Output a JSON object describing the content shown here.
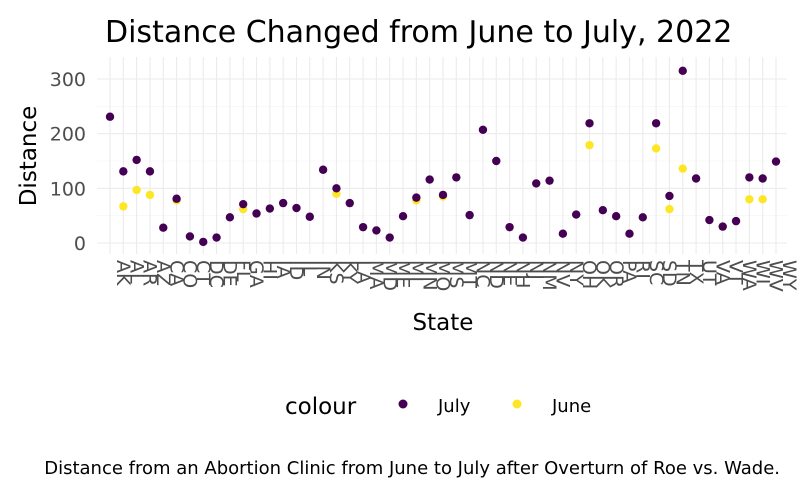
{
  "chart_data": {
    "type": "scatter",
    "title": "Distance Changed from June to July, 2022",
    "xlabel": "State",
    "ylabel": "Distance",
    "caption": "Distance from an Abortion Clinic from June to July after Overturn of Roe vs. Wade.",
    "ylim": [
      -10,
      330
    ],
    "yticks": [
      0,
      100,
      200,
      300
    ],
    "grid": true,
    "legend": {
      "title": "colour",
      "position": "bottom"
    },
    "categories": [
      "AK",
      "AL",
      "AR",
      "AZ",
      "CA",
      "CO",
      "CT",
      "DC",
      "DE",
      "FL",
      "GA",
      "HI",
      "IA",
      "ID",
      "IL",
      "IN",
      "KS",
      "KY",
      "LA",
      "MA",
      "MD",
      "ME",
      "MI",
      "MN",
      "MO",
      "MS",
      "MT",
      "NC",
      "ND",
      "NE",
      "NH",
      "NJ",
      "NM",
      "NV",
      "NY",
      "OH",
      "OK",
      "OR",
      "PA",
      "RI",
      "SC",
      "SD",
      "TN",
      "TX",
      "UT",
      "VA",
      "VT",
      "WA",
      "WI",
      "WV",
      "WY"
    ],
    "series": [
      {
        "name": "July",
        "color": "#440154",
        "values": [
          231,
          131,
          152,
          131,
          28,
          81,
          12,
          2,
          10,
          47,
          71,
          54,
          63,
          73,
          64,
          48,
          134,
          100,
          73,
          29,
          23,
          10,
          49,
          83,
          116,
          88,
          120,
          51,
          207,
          150,
          29,
          10,
          109,
          114,
          17,
          52,
          219,
          60,
          49,
          17,
          47,
          219,
          86,
          315,
          118,
          42,
          30,
          40,
          120,
          118,
          149
        ]
      },
      {
        "name": "June",
        "color": "#fde725",
        "values": [
          null,
          67,
          97,
          88,
          null,
          78,
          null,
          null,
          null,
          null,
          62,
          null,
          null,
          null,
          null,
          null,
          null,
          90,
          null,
          null,
          null,
          null,
          null,
          78,
          null,
          85,
          null,
          null,
          null,
          null,
          null,
          null,
          null,
          null,
          null,
          null,
          179,
          null,
          null,
          null,
          null,
          173,
          62,
          136,
          null,
          null,
          30,
          null,
          80,
          80,
          null
        ]
      }
    ]
  }
}
